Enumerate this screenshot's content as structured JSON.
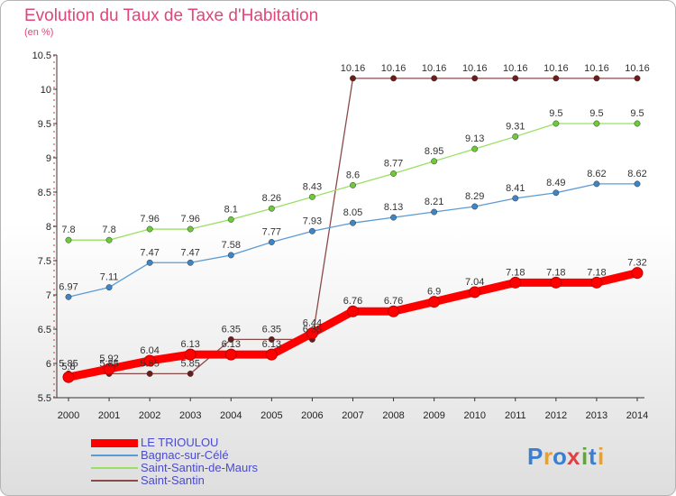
{
  "title": "Evolution du Taux de Taxe d'Habitation",
  "unit_label": "(en %)",
  "logo_text": "Proxiti",
  "chart_data": {
    "type": "line",
    "x": [
      2000,
      2001,
      2002,
      2003,
      2004,
      2005,
      2006,
      2007,
      2008,
      2009,
      2010,
      2011,
      2012,
      2013,
      2014
    ],
    "ylim": [
      5.5,
      10.5
    ],
    "yticks": [
      5.5,
      6,
      6.5,
      7,
      7.5,
      8,
      8.5,
      9,
      9.5,
      10,
      10.5
    ],
    "grid": false,
    "legend_position": "bottom-left",
    "series": [
      {
        "name": "LE TRIOULOU",
        "color": "#ff0000",
        "marker": "#ff0000",
        "values": [
          5.8,
          5.92,
          6.04,
          6.13,
          6.13,
          6.13,
          6.44,
          6.76,
          6.76,
          6.9,
          7.04,
          7.18,
          7.18,
          7.18,
          7.32
        ],
        "labels": [
          "5.8",
          "5.92",
          "6.04",
          "6.13",
          "6.13",
          "6.13",
          "6.44",
          "6.76",
          "6.76",
          "6.9",
          "7.04",
          "7.18",
          "7.18",
          "7.18",
          "7.32"
        ]
      },
      {
        "name": "Bagnac-sur-Célé",
        "color": "#5b9bd5",
        "marker": "#3d85c6",
        "values": [
          6.97,
          7.11,
          7.47,
          7.47,
          7.58,
          7.77,
          7.93,
          8.05,
          8.13,
          8.21,
          8.29,
          8.41,
          8.49,
          8.62,
          8.62
        ],
        "labels": [
          "6.97",
          "7.11",
          "7.47",
          "7.47",
          "7.58",
          "7.77",
          "7.93",
          "8.05",
          "8.13",
          "8.21",
          "8.29",
          "8.41",
          "8.49",
          "8.62",
          "8.62"
        ]
      },
      {
        "name": "Saint-Santin-de-Maurs",
        "color": "#99e063",
        "marker": "#6cc93a",
        "values": [
          7.8,
          7.8,
          7.96,
          7.96,
          8.1,
          8.26,
          8.43,
          8.6,
          8.77,
          8.95,
          9.13,
          9.31,
          9.5,
          9.5,
          9.5
        ],
        "labels": [
          "7.8",
          "7.8",
          "7.96",
          "7.96",
          "8.1",
          "8.26",
          "8.43",
          "8.6",
          "8.77",
          "8.95",
          "9.13",
          "9.31",
          "9.5",
          "9.5",
          "9.5"
        ]
      },
      {
        "name": "Saint-Santin",
        "color": "#8b4a4a",
        "marker": "#6b1c1c",
        "values": [
          5.85,
          5.85,
          5.85,
          5.85,
          6.35,
          6.35,
          6.35,
          10.16,
          10.16,
          10.16,
          10.16,
          10.16,
          10.16,
          10.16,
          10.16
        ],
        "labels": [
          "5.85",
          "5.85",
          "5.85",
          "5.85",
          "6.35",
          "6.35",
          "6.35",
          "10.16",
          "10.16",
          "10.16",
          "10.16",
          "10.16",
          "10.16",
          "10.16",
          "10.16"
        ]
      }
    ]
  }
}
